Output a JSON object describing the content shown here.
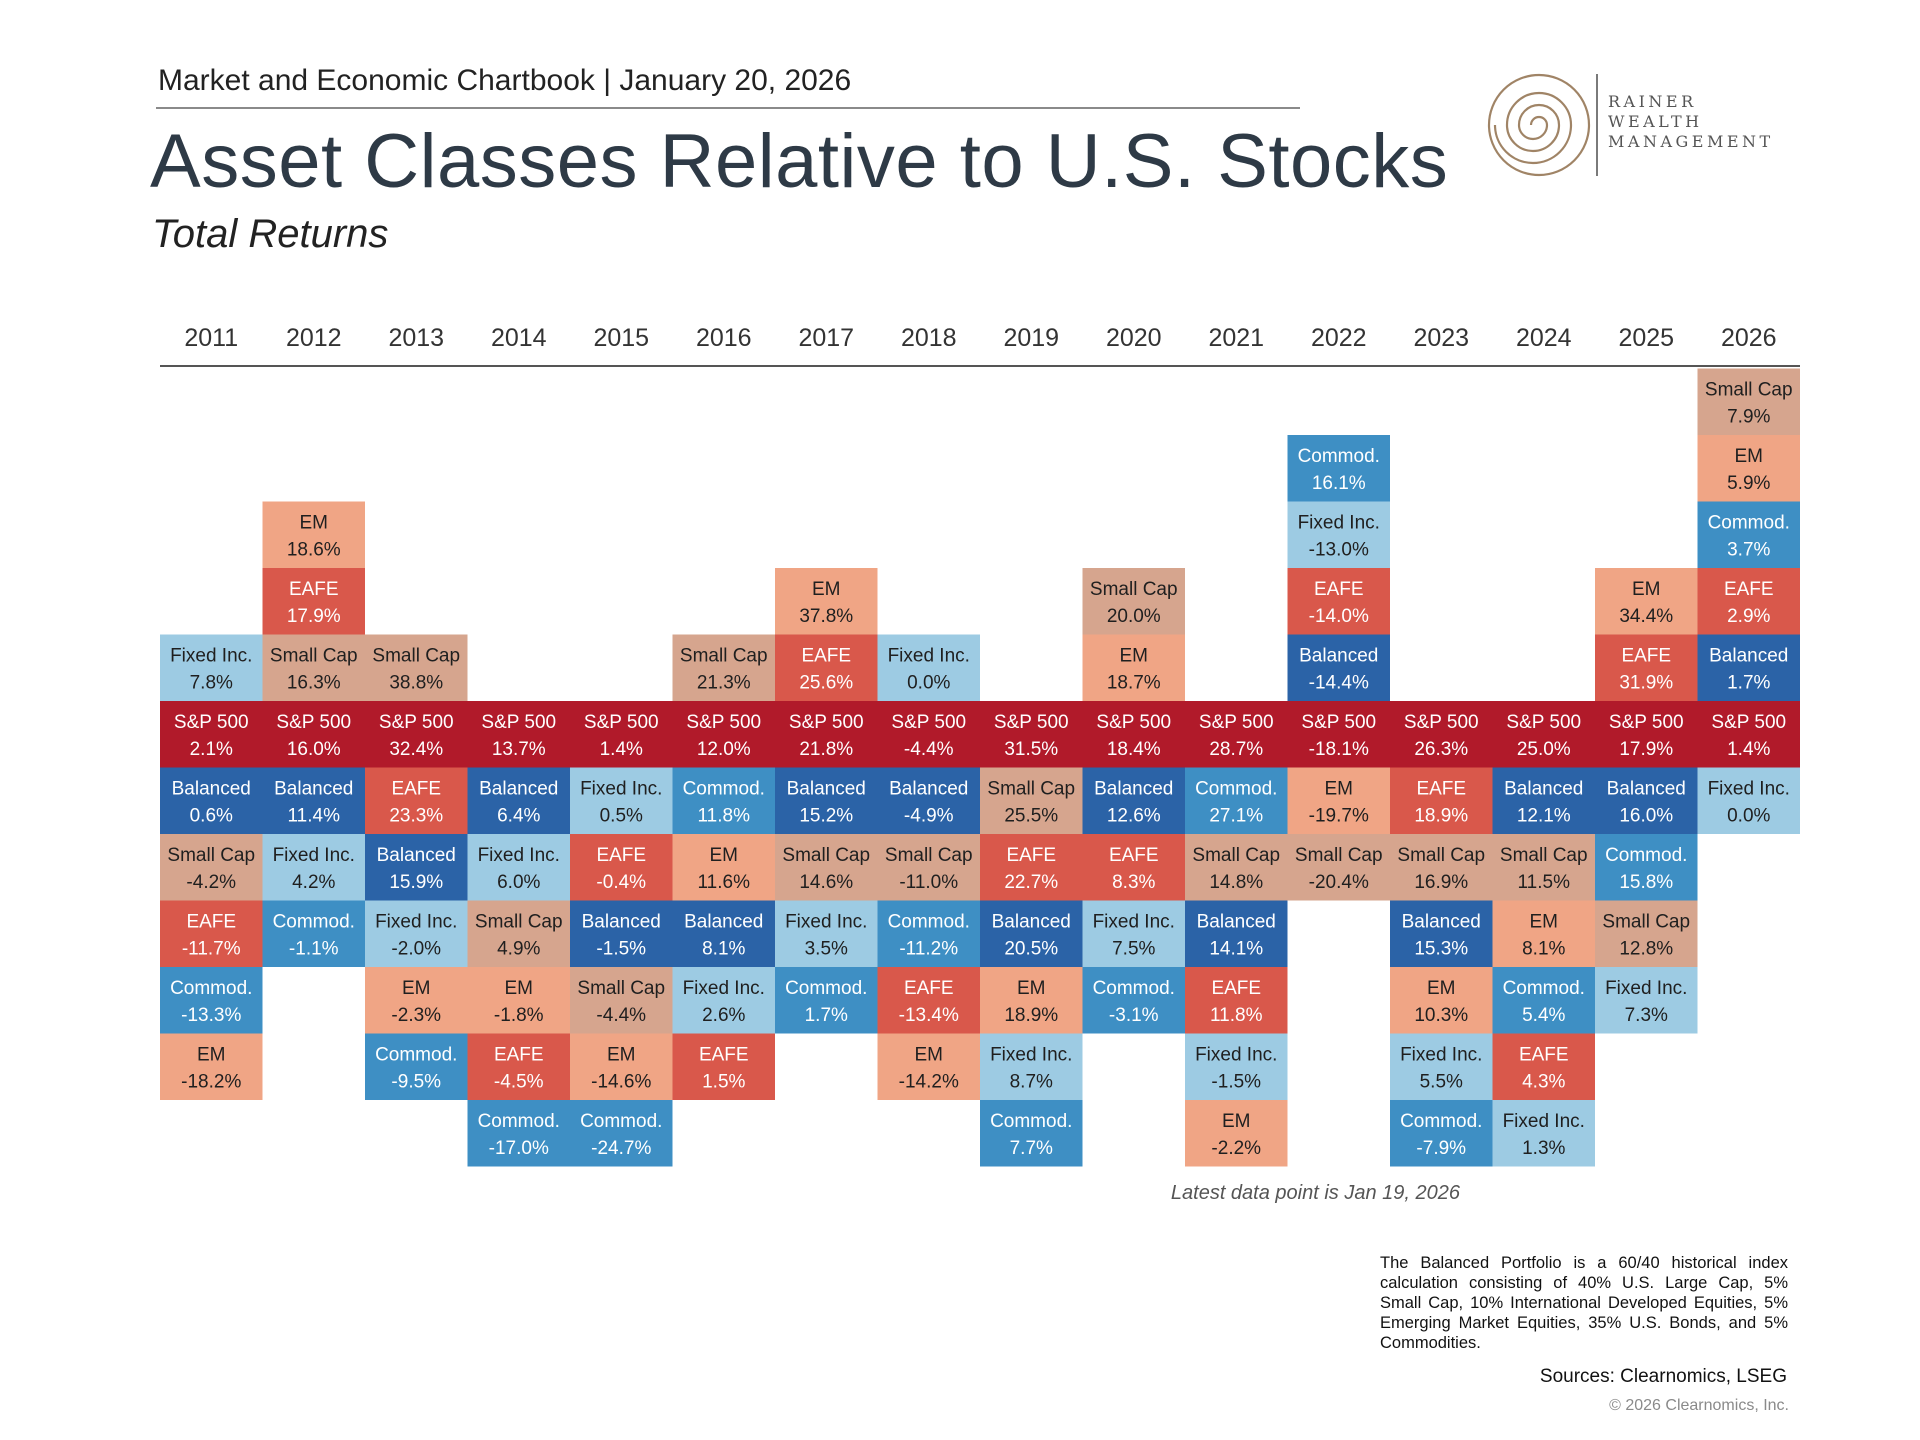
{
  "header": {
    "line": "Market and Economic Chartbook | January 20, 2026",
    "title": "Asset Classes Relative to U.S. Stocks",
    "subtitle": "Total Returns"
  },
  "logo": {
    "line1": "RAINER",
    "line2": "WEALTH",
    "line3": "MANAGEMENT",
    "color": "#a08466"
  },
  "colors": {
    "S&P 500": "#b11a2a",
    "Balanced": "#2b63a7",
    "Fixed Inc.": "#9dcbe3",
    "Commod.": "#3e8fc4",
    "Small Cap": "#d6a58e",
    "EAFE": "#d9584b",
    "EM": "#f0a585"
  },
  "chart_data": {
    "type": "table",
    "title": "Asset Classes Relative to U.S. Stocks",
    "subtitle": "Total Returns",
    "anchor": "S&P 500",
    "note": "Columns are ordered by annual total return; each column is aligned on the S&P 500 row.",
    "years": [
      {
        "year": "2011",
        "above": [
          [
            "Fixed Inc.",
            "7.8%"
          ]
        ],
        "sp500": "2.1%",
        "below": [
          [
            "Balanced",
            "0.6%"
          ],
          [
            "Small Cap",
            "-4.2%"
          ],
          [
            "EAFE",
            "-11.7%"
          ],
          [
            "Commod.",
            "-13.3%"
          ],
          [
            "EM",
            "-18.2%"
          ]
        ]
      },
      {
        "year": "2012",
        "above": [
          [
            "EM",
            "18.6%"
          ],
          [
            "EAFE",
            "17.9%"
          ],
          [
            "Small Cap",
            "16.3%"
          ]
        ],
        "sp500": "16.0%",
        "below": [
          [
            "Balanced",
            "11.4%"
          ],
          [
            "Fixed Inc.",
            "4.2%"
          ],
          [
            "Commod.",
            "-1.1%"
          ]
        ]
      },
      {
        "year": "2013",
        "above": [
          [
            "Small Cap",
            "38.8%"
          ]
        ],
        "sp500": "32.4%",
        "below": [
          [
            "EAFE",
            "23.3%"
          ],
          [
            "Balanced",
            "15.9%"
          ],
          [
            "Fixed Inc.",
            "-2.0%"
          ],
          [
            "EM",
            "-2.3%"
          ],
          [
            "Commod.",
            "-9.5%"
          ]
        ]
      },
      {
        "year": "2014",
        "above": [],
        "sp500": "13.7%",
        "below": [
          [
            "Balanced",
            "6.4%"
          ],
          [
            "Fixed Inc.",
            "6.0%"
          ],
          [
            "Small Cap",
            "4.9%"
          ],
          [
            "EM",
            "-1.8%"
          ],
          [
            "EAFE",
            "-4.5%"
          ],
          [
            "Commod.",
            "-17.0%"
          ]
        ]
      },
      {
        "year": "2015",
        "above": [],
        "sp500": "1.4%",
        "below": [
          [
            "Fixed Inc.",
            "0.5%"
          ],
          [
            "EAFE",
            "-0.4%"
          ],
          [
            "Balanced",
            "-1.5%"
          ],
          [
            "Small Cap",
            "-4.4%"
          ],
          [
            "EM",
            "-14.6%"
          ],
          [
            "Commod.",
            "-24.7%"
          ]
        ]
      },
      {
        "year": "2016",
        "above": [
          [
            "Small Cap",
            "21.3%"
          ]
        ],
        "sp500": "12.0%",
        "below": [
          [
            "Commod.",
            "11.8%"
          ],
          [
            "EM",
            "11.6%"
          ],
          [
            "Balanced",
            "8.1%"
          ],
          [
            "Fixed Inc.",
            "2.6%"
          ],
          [
            "EAFE",
            "1.5%"
          ]
        ]
      },
      {
        "year": "2017",
        "above": [
          [
            "EM",
            "37.8%"
          ],
          [
            "EAFE",
            "25.6%"
          ]
        ],
        "sp500": "21.8%",
        "below": [
          [
            "Balanced",
            "15.2%"
          ],
          [
            "Small Cap",
            "14.6%"
          ],
          [
            "Fixed Inc.",
            "3.5%"
          ],
          [
            "Commod.",
            "1.7%"
          ]
        ]
      },
      {
        "year": "2018",
        "above": [
          [
            "Fixed Inc.",
            "0.0%"
          ]
        ],
        "sp500": "-4.4%",
        "below": [
          [
            "Balanced",
            "-4.9%"
          ],
          [
            "Small Cap",
            "-11.0%"
          ],
          [
            "Commod.",
            "-11.2%"
          ],
          [
            "EAFE",
            "-13.4%"
          ],
          [
            "EM",
            "-14.2%"
          ]
        ]
      },
      {
        "year": "2019",
        "above": [],
        "sp500": "31.5%",
        "below": [
          [
            "Small Cap",
            "25.5%"
          ],
          [
            "EAFE",
            "22.7%"
          ],
          [
            "Balanced",
            "20.5%"
          ],
          [
            "EM",
            "18.9%"
          ],
          [
            "Fixed Inc.",
            "8.7%"
          ],
          [
            "Commod.",
            "7.7%"
          ]
        ]
      },
      {
        "year": "2020",
        "above": [
          [
            "Small Cap",
            "20.0%"
          ],
          [
            "EM",
            "18.7%"
          ]
        ],
        "sp500": "18.4%",
        "below": [
          [
            "Balanced",
            "12.6%"
          ],
          [
            "EAFE",
            "8.3%"
          ],
          [
            "Fixed Inc.",
            "7.5%"
          ],
          [
            "Commod.",
            "-3.1%"
          ]
        ]
      },
      {
        "year": "2021",
        "above": [],
        "sp500": "28.7%",
        "below": [
          [
            "Commod.",
            "27.1%"
          ],
          [
            "Small Cap",
            "14.8%"
          ],
          [
            "Balanced",
            "14.1%"
          ],
          [
            "EAFE",
            "11.8%"
          ],
          [
            "Fixed Inc.",
            "-1.5%"
          ],
          [
            "EM",
            "-2.2%"
          ]
        ]
      },
      {
        "year": "2022",
        "above": [
          [
            "Commod.",
            "16.1%"
          ],
          [
            "Fixed Inc.",
            "-13.0%"
          ],
          [
            "EAFE",
            "-14.0%"
          ],
          [
            "Balanced",
            "-14.4%"
          ]
        ],
        "sp500": "-18.1%",
        "below": [
          [
            "EM",
            "-19.7%"
          ],
          [
            "Small Cap",
            "-20.4%"
          ]
        ]
      },
      {
        "year": "2023",
        "above": [],
        "sp500": "26.3%",
        "below": [
          [
            "EAFE",
            "18.9%"
          ],
          [
            "Small Cap",
            "16.9%"
          ],
          [
            "Balanced",
            "15.3%"
          ],
          [
            "EM",
            "10.3%"
          ],
          [
            "Fixed Inc.",
            "5.5%"
          ],
          [
            "Commod.",
            "-7.9%"
          ]
        ]
      },
      {
        "year": "2024",
        "above": [],
        "sp500": "25.0%",
        "below": [
          [
            "Balanced",
            "12.1%"
          ],
          [
            "Small Cap",
            "11.5%"
          ],
          [
            "EM",
            "8.1%"
          ],
          [
            "Commod.",
            "5.4%"
          ],
          [
            "EAFE",
            "4.3%"
          ],
          [
            "Fixed Inc.",
            "1.3%"
          ]
        ]
      },
      {
        "year": "2025",
        "above": [
          [
            "EM",
            "34.4%"
          ],
          [
            "EAFE",
            "31.9%"
          ]
        ],
        "sp500": "17.9%",
        "below": [
          [
            "Balanced",
            "16.0%"
          ],
          [
            "Commod.",
            "15.8%"
          ],
          [
            "Small Cap",
            "12.8%"
          ],
          [
            "Fixed Inc.",
            "7.3%"
          ]
        ]
      },
      {
        "year": "2026",
        "above": [
          [
            "Small Cap",
            "7.9%"
          ],
          [
            "EM",
            "5.9%"
          ],
          [
            "Commod.",
            "3.7%"
          ],
          [
            "EAFE",
            "2.9%"
          ],
          [
            "Balanced",
            "1.7%"
          ]
        ],
        "sp500": "1.4%",
        "below": [
          [
            "Fixed Inc.",
            "0.0%"
          ]
        ]
      }
    ]
  },
  "footer": {
    "latest": "Latest data point is Jan 19, 2026",
    "note": "The Balanced Portfolio is a 60/40 historical index calculation consisting of 40% U.S. Large Cap, 5% Small Cap, 10% International Developed Equities, 5% Emerging Market Equities, 35% U.S. Bonds, and 5% Commodities.",
    "sources": "Sources: Clearnomics, LSEG",
    "copyright": "© 2026 Clearnomics, Inc."
  }
}
